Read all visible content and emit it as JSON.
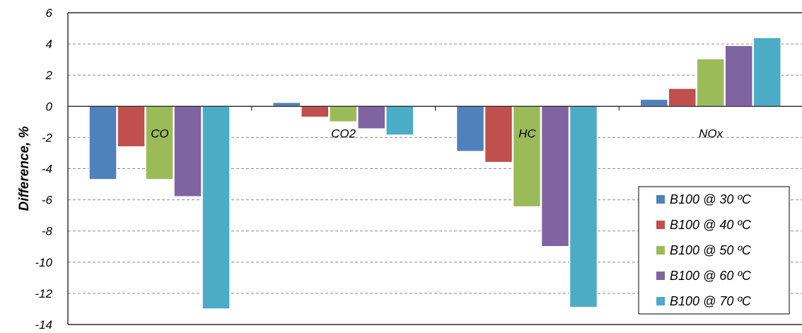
{
  "chart_data": {
    "type": "bar",
    "title": "",
    "xlabel": "",
    "ylabel": "Difference, %",
    "ylim": [
      -14,
      6
    ],
    "yticks": [
      6,
      4,
      2,
      0,
      -2,
      -4,
      -6,
      -8,
      -10,
      -12,
      -14
    ],
    "grid": true,
    "legend_position": "bottom-right",
    "categories": [
      "CO",
      "CO2",
      "HC",
      "NOx"
    ],
    "series": [
      {
        "name": "B100 @ 30 ºC",
        "color": "#4f81bd",
        "values": [
          -4.7,
          0.25,
          -2.9,
          0.45
        ]
      },
      {
        "name": "B100 @ 40 ºC",
        "color": "#c0504d",
        "values": [
          -2.6,
          -0.7,
          -3.6,
          1.15
        ]
      },
      {
        "name": "B100 @ 50 ºC",
        "color": "#9bbb59",
        "values": [
          -4.7,
          -1.0,
          -6.45,
          3.05
        ]
      },
      {
        "name": "B100 @ 60 ºC",
        "color": "#8064a2",
        "values": [
          -5.8,
          -1.45,
          -9.0,
          3.9
        ]
      },
      {
        "name": "B100 @ 70 ºC",
        "color": "#4bacc6",
        "values": [
          -13.0,
          -1.85,
          -12.9,
          4.4
        ]
      }
    ]
  }
}
